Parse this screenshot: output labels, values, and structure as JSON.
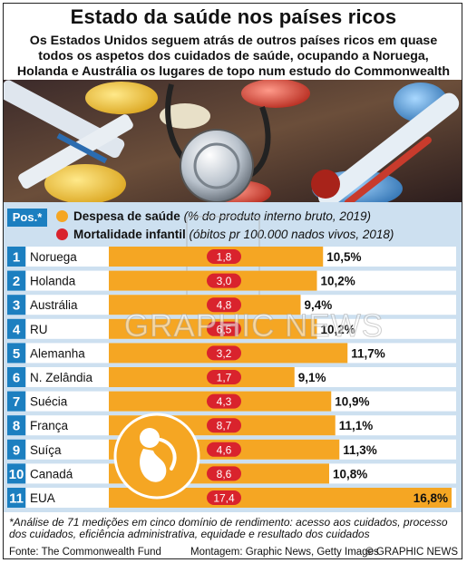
{
  "header": {
    "title": "Estado da saúde nos países ricos",
    "subtitle": "Os Estados Unidos seguem atrás de outros países ricos em quase todos os aspetos dos cuidados de saúde, ocupando a Noruega, Holanda e Austrália os lugares de topo num estudo do Commonwealth Fund"
  },
  "legend": {
    "pos_label": "Pos.*",
    "spending_label": "Despesa de saúde",
    "spending_note": "(% do produto interno bruto, 2019)",
    "mortality_label": "Mortalidade infantil",
    "mortality_note": "(óbitos pr 100.000 nados vivos, 2018)"
  },
  "colors": {
    "spending_bar": "#f5a623",
    "mortality_pill": "#d9232d",
    "rank_box": "#1c7fc0",
    "chart_background": "#cde0f0"
  },
  "chart_data": {
    "type": "bar",
    "orientation": "horizontal",
    "categories": [
      "Noruega",
      "Holanda",
      "Austrália",
      "RU",
      "Alemanha",
      "N. Zelândia",
      "Suécia",
      "França",
      "Suíça",
      "Canadá",
      "EUA"
    ],
    "ranks": [
      1,
      2,
      3,
      4,
      5,
      6,
      7,
      8,
      9,
      10,
      11
    ],
    "series": [
      {
        "name": "Despesa de saúde",
        "values": [
          10.5,
          10.2,
          9.4,
          10.2,
          11.7,
          9.1,
          10.9,
          11.1,
          11.3,
          10.8,
          16.8
        ],
        "labels": [
          "10,5%",
          "10,2%",
          "9,4%",
          "10,2%",
          "11,7%",
          "9,1%",
          "10,9%",
          "11,1%",
          "11,3%",
          "10,8%",
          "16,8%"
        ]
      },
      {
        "name": "Mortalidade infantil",
        "values": [
          1.8,
          3.0,
          4.8,
          6.5,
          3.2,
          1.7,
          4.3,
          8.7,
          4.6,
          8.6,
          17.4
        ],
        "labels": [
          "1,8",
          "3,0",
          "4,8",
          "6,5",
          "3,2",
          "1,7",
          "4,3",
          "8,7",
          "4,6",
          "8,6",
          "17,4"
        ]
      }
    ],
    "xlim": [
      0,
      16.8
    ]
  },
  "watermark": "GRAPHIC NEWS",
  "footnote": "*Análise de 71 medições em cinco domínio de rendimento: acesso aos cuidados, processo dos cuidados, eficiência administrativa, equidade e resultado dos cuidados",
  "footer": {
    "source": "Fonte: The Commonwealth Fund",
    "credits": "Montagem: Graphic News, Getty Images",
    "copyright": "© GRAPHIC NEWS"
  }
}
